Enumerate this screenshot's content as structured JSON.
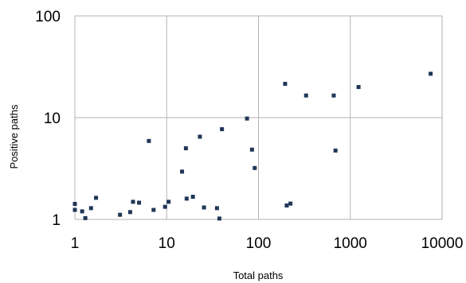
{
  "chart_data": {
    "type": "scatter",
    "title": "",
    "xlabel": "Total paths",
    "ylabel": "Positive paths",
    "x_scale": "log",
    "y_scale": "log",
    "xlim": [
      1,
      10000
    ],
    "ylim": [
      1,
      100
    ],
    "grid": true,
    "x_ticks": [
      "1",
      "10",
      "100",
      "1000",
      "10000"
    ],
    "y_ticks": [
      "1",
      "10",
      "100"
    ],
    "colors": {
      "point": "#1f3657",
      "grid": "#b3b3b3"
    },
    "series": [
      {
        "x": [
          1,
          1,
          1.2,
          1.3,
          1.5,
          1.7,
          3.1,
          4,
          4.3,
          5,
          6.4,
          7.2,
          9.6,
          10.5,
          14.7,
          16.2,
          16.5,
          19.3,
          23,
          25.5,
          35.3,
          37.5,
          40,
          75,
          85,
          91,
          195,
          203,
          223,
          330,
          660,
          690,
          1230,
          7500
        ],
        "y": [
          1.42,
          1.24,
          1.2,
          1.03,
          1.29,
          1.63,
          1.11,
          1.18,
          1.49,
          1.46,
          5.9,
          1.24,
          1.33,
          1.49,
          2.95,
          5,
          1.6,
          1.67,
          6.5,
          1.31,
          1.29,
          1.02,
          7.7,
          9.8,
          4.85,
          3.2,
          21.5,
          1.37,
          1.43,
          16.5,
          16.5,
          4.75,
          20,
          27
        ]
      }
    ]
  }
}
